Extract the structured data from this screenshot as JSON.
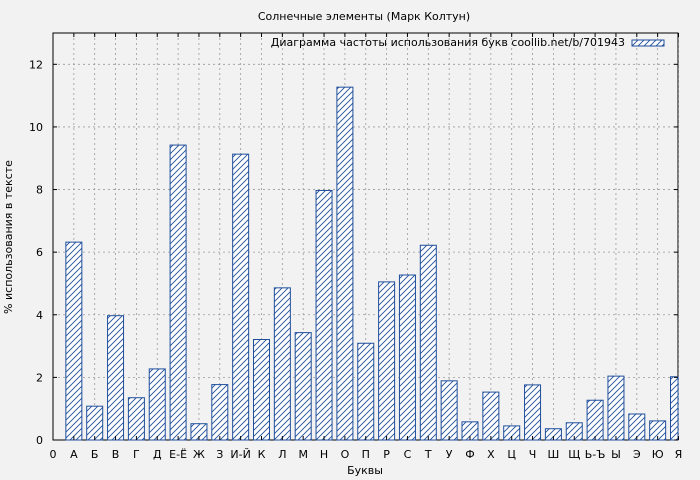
{
  "chart_data": {
    "type": "bar",
    "title": "Солнечные элементы (Марк Колтун)",
    "xlabel": "Буквы",
    "ylabel": "% использования в тексте",
    "legend": {
      "label": "Диаграмма частоты использования букв coollib.net/b/701943",
      "position": "top-right"
    },
    "x_ticks": [
      "0",
      "А",
      "Б",
      "В",
      "Г",
      "Д",
      "Е-Ё",
      "Ж",
      "З",
      "И-Й",
      "К",
      "Л",
      "М",
      "Н",
      "О",
      "П",
      "Р",
      "С",
      "Т",
      "У",
      "Ф",
      "Х",
      "Ц",
      "Ч",
      "Ш",
      "Щ",
      "Ь-Ъ",
      "Ы",
      "Э",
      "Ю",
      "Я"
    ],
    "categories": [
      "А",
      "Б",
      "В",
      "Г",
      "Д",
      "Е-Ё",
      "Ж",
      "З",
      "И-Й",
      "К",
      "Л",
      "М",
      "Н",
      "О",
      "П",
      "Р",
      "С",
      "Т",
      "У",
      "Ф",
      "Х",
      "Ц",
      "Ч",
      "Ш",
      "Щ",
      "Ь-Ъ",
      "Ы",
      "Э",
      "Ю",
      "Я"
    ],
    "values": [
      6.32,
      1.08,
      3.97,
      1.35,
      2.27,
      9.42,
      0.52,
      1.77,
      9.13,
      3.21,
      4.86,
      3.43,
      7.97,
      11.27,
      3.09,
      5.05,
      5.27,
      6.22,
      1.89,
      0.58,
      1.53,
      0.45,
      1.76,
      0.36,
      0.55,
      1.27,
      2.04,
      0.83,
      0.61,
      2.02
    ],
    "ylim": [
      0,
      13
    ],
    "y_ticks": [
      0,
      2,
      4,
      6,
      8,
      10,
      12
    ],
    "grid": true,
    "colors": {
      "bar_stroke": "#1f4e9c",
      "bar_fill": "#ffffff",
      "plot_bg": "#f2f2f2",
      "grid": "#9a9a9a"
    }
  }
}
